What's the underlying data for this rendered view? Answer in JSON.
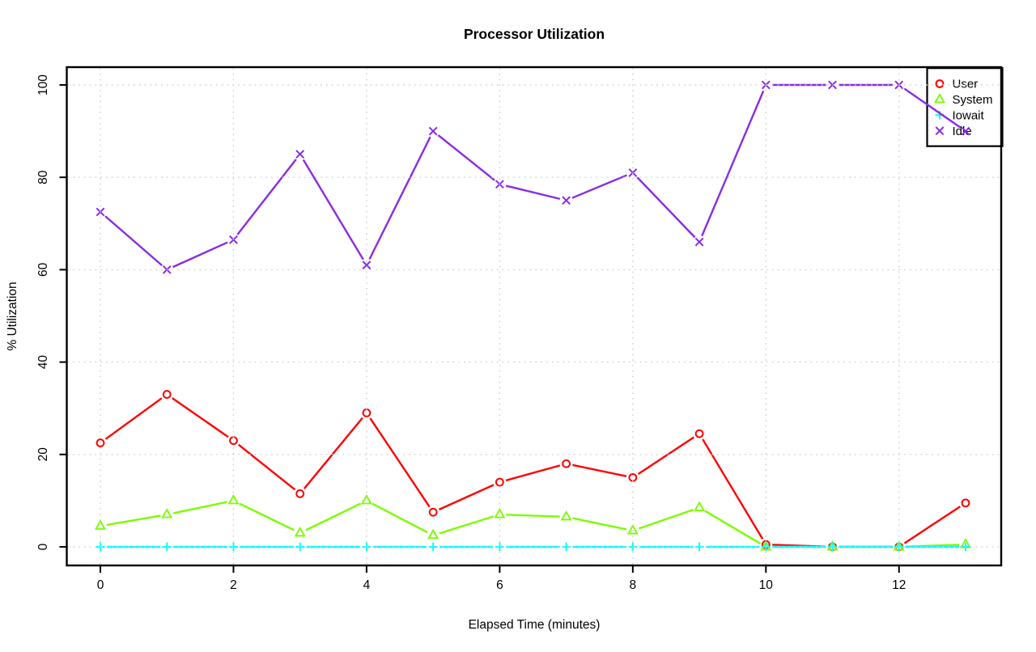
{
  "page": {
    "background": "#FFFFFF"
  },
  "chart_data": {
    "type": "line",
    "title": "Processor Utilization",
    "xlabel": "Elapsed Time (minutes)",
    "ylabel": "% Utilization",
    "x": [
      0,
      1,
      2,
      3,
      4,
      5,
      6,
      7,
      8,
      9,
      10,
      11,
      12,
      13
    ],
    "xlim": [
      0,
      13
    ],
    "ylim": [
      0,
      100
    ],
    "x_ticks": [
      "0",
      "2",
      "4",
      "6",
      "8",
      "10",
      "12"
    ],
    "x_tick_values": [
      0,
      2,
      4,
      6,
      8,
      10,
      12
    ],
    "y_ticks": [
      "0",
      "20",
      "40",
      "60",
      "80",
      "100"
    ],
    "y_tick_values": [
      0,
      20,
      40,
      60,
      80,
      100
    ],
    "grid": true,
    "grid_style": "dotted",
    "grid_color": "#CDCDCD",
    "frame_color": "#000000",
    "legend_position": "top-right",
    "legend_labels": [
      "User",
      "System",
      "Iowait",
      "Idle"
    ],
    "series": [
      {
        "name": "User",
        "color": "#FF0000",
        "marker": "circle",
        "values": [
          22.5,
          33,
          23,
          11.5,
          29,
          7.5,
          14,
          18,
          15,
          24.5,
          0.5,
          0,
          0,
          9.5
        ]
      },
      {
        "name": "System",
        "color": "#7CFC00",
        "marker": "triangle",
        "values": [
          4.5,
          7,
          10,
          3,
          10,
          2.5,
          7,
          6.5,
          3.5,
          8.5,
          0,
          0,
          0,
          0.5
        ]
      },
      {
        "name": "Iowait",
        "color": "#00FFFF",
        "marker": "plus",
        "values": [
          0,
          0,
          0,
          0,
          0,
          0,
          0,
          0,
          0,
          0,
          0,
          0,
          0,
          0
        ]
      },
      {
        "name": "Idle",
        "color": "#8A2BE2",
        "marker": "x",
        "values": [
          72.5,
          60,
          66.5,
          85,
          61,
          90,
          78.5,
          75,
          81,
          66,
          100,
          100,
          100,
          90
        ]
      }
    ]
  }
}
